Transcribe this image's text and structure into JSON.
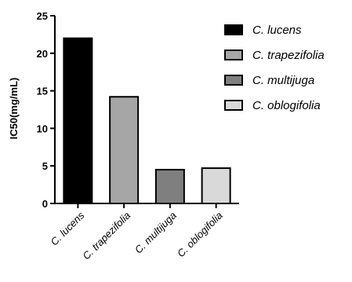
{
  "chart_data": {
    "type": "bar",
    "title": "",
    "xlabel": "",
    "ylabel": "IC50(mg/mL)",
    "ylim": [
      0,
      25
    ],
    "yticks": [
      0,
      5,
      10,
      15,
      20,
      25
    ],
    "categories": [
      "C. lucens",
      "C. trapezifolia",
      "C. multijuga",
      "C. oblogifolia"
    ],
    "values": [
      22,
      14.2,
      4.5,
      4.7
    ],
    "colors": [
      "#000000",
      "#a6a6a6",
      "#7f7f7f",
      "#d9d9d9"
    ],
    "legend": {
      "placement": "top-right",
      "entries": [
        "C. lucens",
        "C. trapezifolia",
        "C. multijuga",
        "C. oblogifolia"
      ]
    },
    "grid": false
  }
}
